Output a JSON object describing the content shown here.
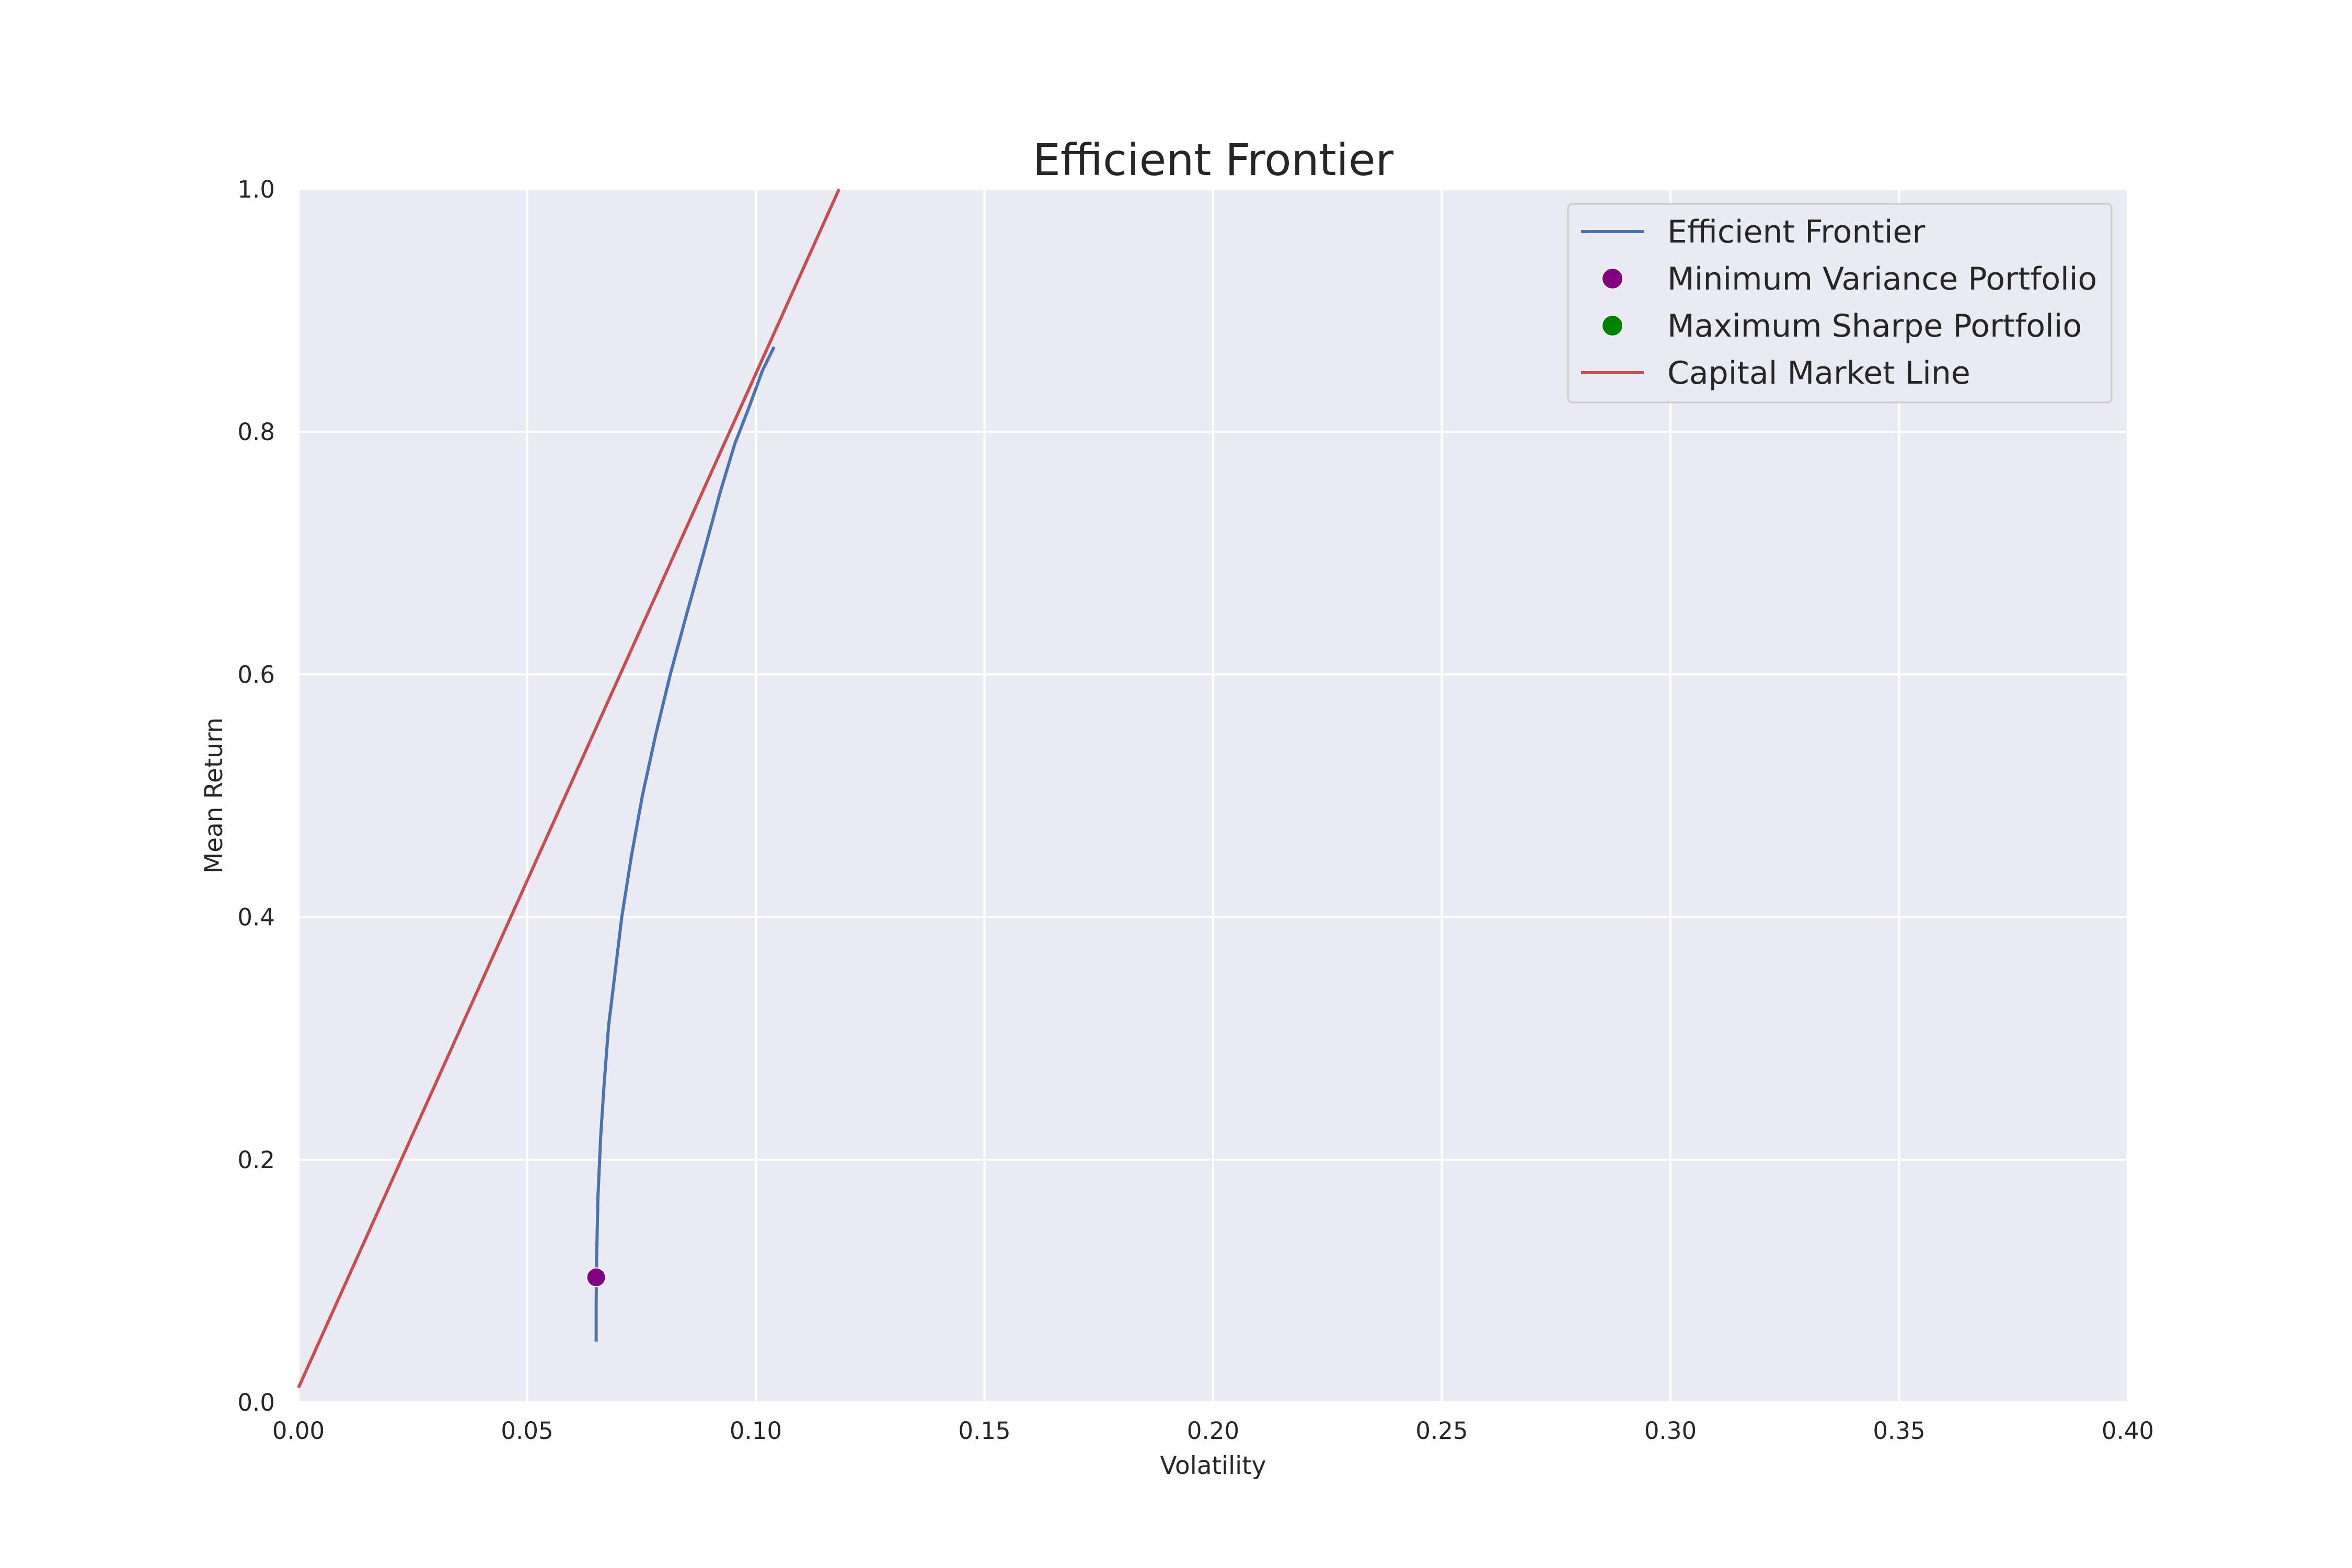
{
  "chart_data": {
    "type": "line",
    "title": "Efficient Frontier",
    "xlabel": "Volatility",
    "ylabel": "Mean Return",
    "xlim": [
      0.0,
      0.4
    ],
    "ylim": [
      0.0,
      1.0
    ],
    "xticks": [
      "0.00",
      "0.05",
      "0.10",
      "0.15",
      "0.20",
      "0.25",
      "0.30",
      "0.35",
      "0.40"
    ],
    "yticks": [
      "0.0",
      "0.2",
      "0.4",
      "0.6",
      "0.8",
      "1.0"
    ],
    "grid": true,
    "legend_position": "top-right",
    "background_color": "#eaeaf2",
    "series": [
      {
        "name": "Efficient Frontier",
        "kind": "line",
        "color": "#4c72b0",
        "x": [
          0.0651,
          0.0651,
          0.0652,
          0.0655,
          0.0661,
          0.0668,
          0.0678,
          0.0691,
          0.0707,
          0.0728,
          0.0752,
          0.0781,
          0.0813,
          0.0849,
          0.0886,
          0.0922,
          0.0954,
          0.0985,
          0.1014,
          0.104
        ],
        "y": [
          0.05,
          0.08,
          0.12,
          0.17,
          0.22,
          0.26,
          0.31,
          0.35,
          0.4,
          0.45,
          0.5,
          0.55,
          0.6,
          0.65,
          0.7,
          0.75,
          0.79,
          0.82,
          0.85,
          0.87
        ]
      },
      {
        "name": "Minimum Variance Portfolio",
        "kind": "scatter",
        "color": "#800080",
        "x": [
          0.0651
        ],
        "y": [
          0.103
        ]
      },
      {
        "name": "Maximum Sharpe Portfolio",
        "kind": "scatter",
        "color": "#008000",
        "x": [],
        "y": []
      },
      {
        "name": "Capital Market Line",
        "kind": "line",
        "color": "#c44e52",
        "x": [
          0.0,
          0.1182
        ],
        "y": [
          0.012,
          1.0
        ]
      }
    ]
  }
}
